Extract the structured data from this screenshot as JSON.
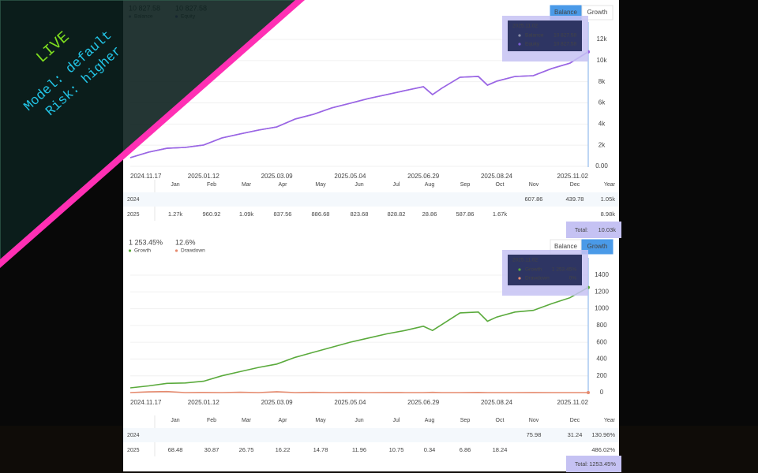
{
  "banner": {
    "live": "LIVE",
    "model": "Model: default",
    "risk": "Risk: higher"
  },
  "chart_data": [
    {
      "type": "line",
      "buttons": [
        "Balance",
        "Growth"
      ],
      "active_button": 0,
      "x": [
        "2024.11.17",
        "2024.12.01",
        "2024.12.15",
        "2024.12.29",
        "2025.01.12",
        "2025.01.26",
        "2025.02.09",
        "2025.02.23",
        "2025.03.09",
        "2025.03.23",
        "2025.04.06",
        "2025.04.20",
        "2025.05.04",
        "2025.05.18",
        "2025.06.01",
        "2025.06.15",
        "2025.06.29",
        "2025.07.06",
        "2025.07.13",
        "2025.07.27",
        "2025.08.10",
        "2025.08.17",
        "2025.08.24",
        "2025.09.07",
        "2025.09.21",
        "2025.10.05",
        "2025.10.19",
        "2025.11.02"
      ],
      "xlim": [
        "2024.11.17",
        "2025.11.02"
      ],
      "xticks": [
        "2024.11.17",
        "2025.01.12",
        "2025.03.09",
        "2025.05.04",
        "2025.06.29",
        "2025.08.24",
        "2025.11.02"
      ],
      "ylim": [
        0,
        12000
      ],
      "yticks": [
        {
          "value": 0,
          "label": "0.00"
        },
        {
          "value": 2000,
          "label": "2k"
        },
        {
          "value": 4000,
          "label": "4k"
        },
        {
          "value": 6000,
          "label": "6k"
        },
        {
          "value": 8000,
          "label": "8k"
        },
        {
          "value": 10000,
          "label": "10k"
        },
        {
          "value": 12000,
          "label": "12k"
        }
      ],
      "grid": true,
      "series": [
        {
          "name": "Balance",
          "color": "#9a66e4",
          "dot": "#8b90a8",
          "header": "10 827.58",
          "values": [
            820,
            1340,
            1710,
            1790,
            2010,
            2680,
            3060,
            3430,
            3730,
            4470,
            4920,
            5520,
            5960,
            6410,
            6780,
            7160,
            7530,
            6780,
            7380,
            8420,
            8500,
            7680,
            8050,
            8500,
            8570,
            9240,
            9760,
            10827.58
          ]
        },
        {
          "name": "Equity",
          "color": "#9a66e4",
          "dot": "#7b5fd6",
          "header": "10 827.58",
          "values": [
            820,
            1340,
            1710,
            1790,
            2010,
            2680,
            3060,
            3430,
            3730,
            4470,
            4920,
            5520,
            5960,
            6410,
            6780,
            7160,
            7530,
            6780,
            7380,
            8420,
            8500,
            7680,
            8050,
            8500,
            8570,
            9240,
            9760,
            10827.58
          ]
        }
      ],
      "tooltip": {
        "values": [
          "10 827.58",
          "10 827.58"
        ]
      },
      "table": {
        "columns": [
          "Jan",
          "Feb",
          "Mar",
          "Apr",
          "May",
          "Jun",
          "Jul",
          "Aug",
          "Sep",
          "Oct",
          "Nov",
          "Dec",
          "Year"
        ],
        "rows": [
          {
            "year": "2024",
            "cells": [
              null,
              null,
              null,
              null,
              null,
              null,
              null,
              null,
              null,
              null,
              "607.86",
              "439.78",
              "1.05k"
            ]
          },
          {
            "year": "2025",
            "cells": [
              "1.27k",
              "960.92",
              "1.09k",
              "837.56",
              "886.68",
              "823.68",
              "828.82",
              "28.86",
              "587.86",
              "1.67k",
              null,
              null,
              "8.98k"
            ]
          }
        ],
        "total_label": "Total:",
        "total": "10.03k"
      }
    },
    {
      "type": "line",
      "buttons": [
        "Balance",
        "Growth"
      ],
      "active_button": 1,
      "x": [
        "2024.11.17",
        "2024.12.01",
        "2024.12.15",
        "2024.12.29",
        "2025.01.12",
        "2025.01.26",
        "2025.02.09",
        "2025.02.23",
        "2025.03.09",
        "2025.03.23",
        "2025.04.06",
        "2025.04.20",
        "2025.05.04",
        "2025.05.18",
        "2025.06.01",
        "2025.06.15",
        "2025.06.29",
        "2025.07.06",
        "2025.07.13",
        "2025.07.27",
        "2025.08.10",
        "2025.08.17",
        "2025.08.24",
        "2025.09.07",
        "2025.09.21",
        "2025.10.05",
        "2025.10.19",
        "2025.11.02"
      ],
      "xlim": [
        "2024.11.17",
        "2025.11.02"
      ],
      "xticks": [
        "2024.11.17",
        "2025.01.12",
        "2025.03.09",
        "2025.05.04",
        "2025.06.29",
        "2025.08.24",
        "2025.11.02"
      ],
      "ylim": [
        0,
        1400
      ],
      "yticks": [
        0,
        200,
        400,
        600,
        800,
        1000,
        1200,
        1400
      ],
      "grid": true,
      "series": [
        {
          "name": "Growth",
          "color": "#5aaa3c",
          "dot": "#5aaa3c",
          "header": "1 253.45%",
          "values": [
            56,
            80,
            110,
            115,
            135,
            200,
            250,
            300,
            340,
            420,
            480,
            540,
            600,
            650,
            700,
            740,
            790,
            740,
            810,
            950,
            960,
            850,
            900,
            960,
            980,
            1060,
            1130,
            1253.45
          ]
        },
        {
          "name": "Drawdown",
          "color": "#e58a6e",
          "dot": "#e58a6e",
          "header": "12.6%",
          "values": [
            0,
            8,
            12,
            0,
            2,
            0,
            4,
            0,
            10,
            0,
            3,
            0,
            2,
            0,
            1,
            0,
            0,
            3,
            0,
            0,
            2,
            0,
            0,
            0,
            1,
            0,
            0,
            0
          ]
        }
      ],
      "tooltip": {
        "values": [
          "1 253.45%",
          "0%"
        ]
      },
      "table": {
        "columns": [
          "Jan",
          "Feb",
          "Mar",
          "Apr",
          "May",
          "Jun",
          "Jul",
          "Aug",
          "Sep",
          "Oct",
          "Nov",
          "Dec",
          "Year"
        ],
        "rows": [
          {
            "year": "2024",
            "cells": [
              null,
              null,
              null,
              null,
              null,
              null,
              null,
              null,
              null,
              null,
              "75.98",
              "31.24",
              "130.96%"
            ]
          },
          {
            "year": "2025",
            "cells": [
              "68.48",
              "30.87",
              "26.75",
              "16.22",
              "14.78",
              "11.96",
              "10.75",
              "0.34",
              "6.86",
              "18.24",
              null,
              null,
              "486.02%"
            ]
          }
        ],
        "total_label": "Total:",
        "total": "1253.45%"
      }
    }
  ]
}
